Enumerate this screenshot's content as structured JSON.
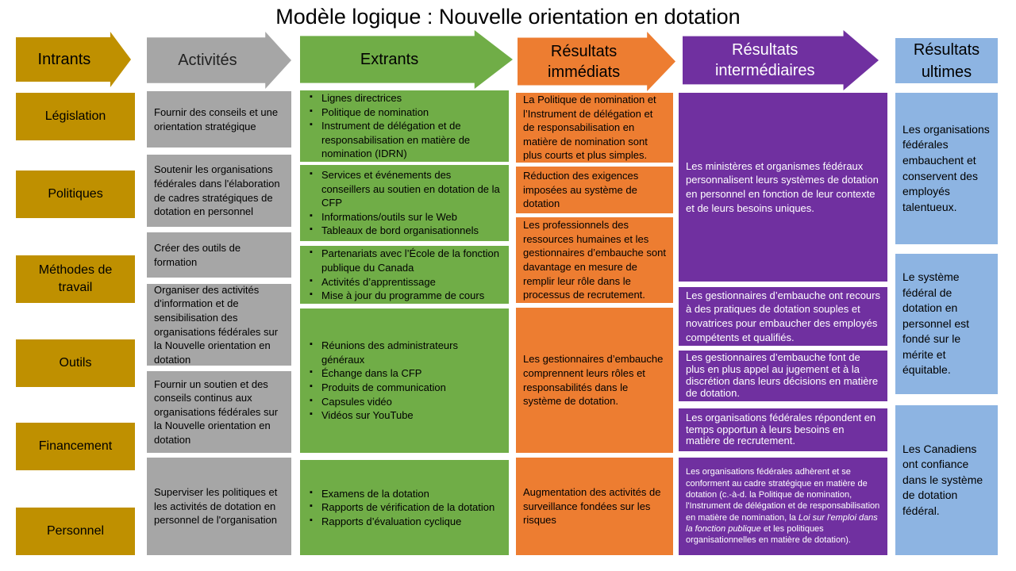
{
  "title": "Modèle logique : Nouvelle orientation en dotation",
  "headers": {
    "intrants": "Intrants",
    "activites": "Activités",
    "extrants": "Extrants",
    "immediats": "Résultats immédiats",
    "intermediaires": "Résultats intermédiaires",
    "ultimes": "Résultats ultimes"
  },
  "colors": {
    "intrants": "#bf9000",
    "activites": "#a6a6a6",
    "extrants": "#70ad47",
    "immediats": "#ed7d31",
    "intermediaires": "#7030a0",
    "ultimes": "#8db4e2"
  },
  "intrants": [
    "Législation",
    "Politiques",
    "Méthodes de travail",
    "Outils",
    "Financement",
    "Personnel"
  ],
  "activites": [
    "Fournir des conseils et une orientation stratégique",
    "Soutenir les organisations fédérales dans l'élaboration de cadres stratégiques de dotation en personnel",
    "Créer des outils de formation",
    "Organiser des activités d'information et de sensibilisation des organisations fédérales sur la Nouvelle orientation en dotation",
    "Fournir un soutien et des conseils continus aux organisations fédérales sur la Nouvelle orientation en dotation",
    "Superviser les politiques et les activités de dotation en personnel de l'organisation"
  ],
  "extrants": [
    [
      "Lignes directrices",
      "Politique de nomination",
      "Instrument de délégation et de responsabilisation en matière de nomination (IDRN)"
    ],
    [
      "Services et événements des conseillers au soutien en dotation de la CFP",
      "Informations/outils sur le Web",
      "Tableaux de bord organisationnels"
    ],
    [
      "Partenariats avec l’École de la fonction publique du Canada",
      "Activités d’apprentissage",
      "Mise à jour du programme de cours"
    ],
    [
      "Réunions des administrateurs généraux",
      "Échange dans la CFP",
      "Produits de communication",
      "Capsules vidéo",
      "Vidéos sur YouTube"
    ],
    [
      "Examens de la dotation",
      "Rapports de vérification de la dotation",
      "Rapports d’évaluation cyclique"
    ]
  ],
  "immediats": [
    "La Politique de nomination et l’Instrument de délégation et de responsabilisation en matière de nomination sont plus courts et plus simples.",
    "Réduction des exigences imposées au système de dotation",
    "Les professionnels des ressources humaines et les gestionnaires d’embauche sont davantage en mesure de remplir leur rôle dans le processus de recrutement.",
    "Les gestionnaires d’embauche comprennent leurs rôles et responsabilités dans le système de dotation.",
    "Augmentation des activités de surveillance fondées sur les risques"
  ],
  "intermediaires": [
    "Les ministères et organismes fédéraux personnalisent leurs systèmes de dotation en personnel en fonction de leur contexte et de leurs besoins uniques.",
    "Les gestionnaires d’embauche ont recours à des pratiques de dotation souples et novatrices pour embaucher des employés compétents et qualifiés.",
    "Les gestionnaires d’embauche font de plus en plus appel au jugement et à la discrétion dans leurs décisions en matière de dotation.",
    "Les organisations fédérales répondent en temps opportun à leurs besoins en matière de recrutement."
  ],
  "intermediaire_last": {
    "a": "Les organisations fédérales adhèrent et se conforment au cadre stratégique en matière de dotation (c.-à-d. la Politique de nomination, l'Instrument de délégation et de responsabilisation en matière de nomination, la ",
    "b": "Loi sur l'emploi dans la fonction publique",
    "c": " et les politiques organisationnelles en matière de dotation)."
  },
  "ultimes": [
    "Les organisations fédérales embauchent et conservent des employés talentueux.",
    "Le système fédéral de dotation en personnel est fondé sur le mérite et équitable.",
    "Les Canadiens ont confiance dans le système de dotation fédéral."
  ]
}
